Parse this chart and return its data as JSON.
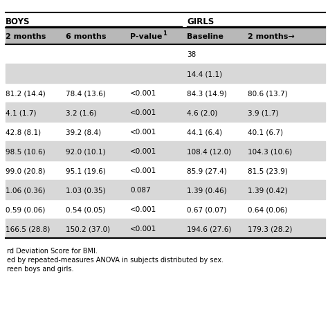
{
  "boys_label": "BOYS",
  "girls_label": "GIRLS",
  "col_headers": [
    "2 months",
    "6 months",
    "P-value",
    "Baseline",
    "2 months→"
  ],
  "rows": [
    [
      "",
      "",
      "",
      "38",
      ""
    ],
    [
      "",
      "",
      "",
      "14.4 (1.1)",
      ""
    ],
    [
      "81.2 (14.4)",
      "78.4 (13.6)",
      "<0.001",
      "84.3 (14.9)",
      "80.6 (13.7)"
    ],
    [
      "4.1 (1.7)",
      "3.2 (1.6)",
      "<0.001",
      "4.6 (2.0)",
      "3.9 (1.7)"
    ],
    [
      "42.8 (8.1)",
      "39.2 (8.4)",
      "<0.001",
      "44.1 (6.4)",
      "40.1 (6.7)"
    ],
    [
      "98.5 (10.6)",
      "92.0 (10.1)",
      "<0.001",
      "108.4 (12.0)",
      "104.3 (10.6)"
    ],
    [
      "99.0 (20.8)",
      "95.1 (19.6)",
      "<0.001",
      "85.9 (27.4)",
      "81.5 (23.9)"
    ],
    [
      "1.06 (0.36)",
      "1.03 (0.35)",
      "0.087",
      "1.39 (0.46)",
      "1.39 (0.42)"
    ],
    [
      "0.59 (0.06)",
      "0.54 (0.05)",
      "<0.001",
      "0.67 (0.07)",
      "0.64 (0.06)"
    ],
    [
      "166.5 (28.8)",
      "150.2 (37.0)",
      "<0.001",
      "194.6 (27.6)",
      "179.3 (28.2)"
    ]
  ],
  "row_shading": [
    false,
    true,
    false,
    true,
    false,
    true,
    false,
    true,
    false,
    true
  ],
  "footnotes": [
    "rd Deviation Score for BMI.",
    "ed by repeated-measures ANOVA in subjects distributed by sex.",
    "reen boys and girls."
  ],
  "bg_color": "#ffffff",
  "shaded_color": "#d8d8d8",
  "header_bg": "#b8b8b8",
  "text_color": "#000000",
  "font_size": 7.5,
  "header_font_size": 8.0,
  "group_font_size": 8.5
}
